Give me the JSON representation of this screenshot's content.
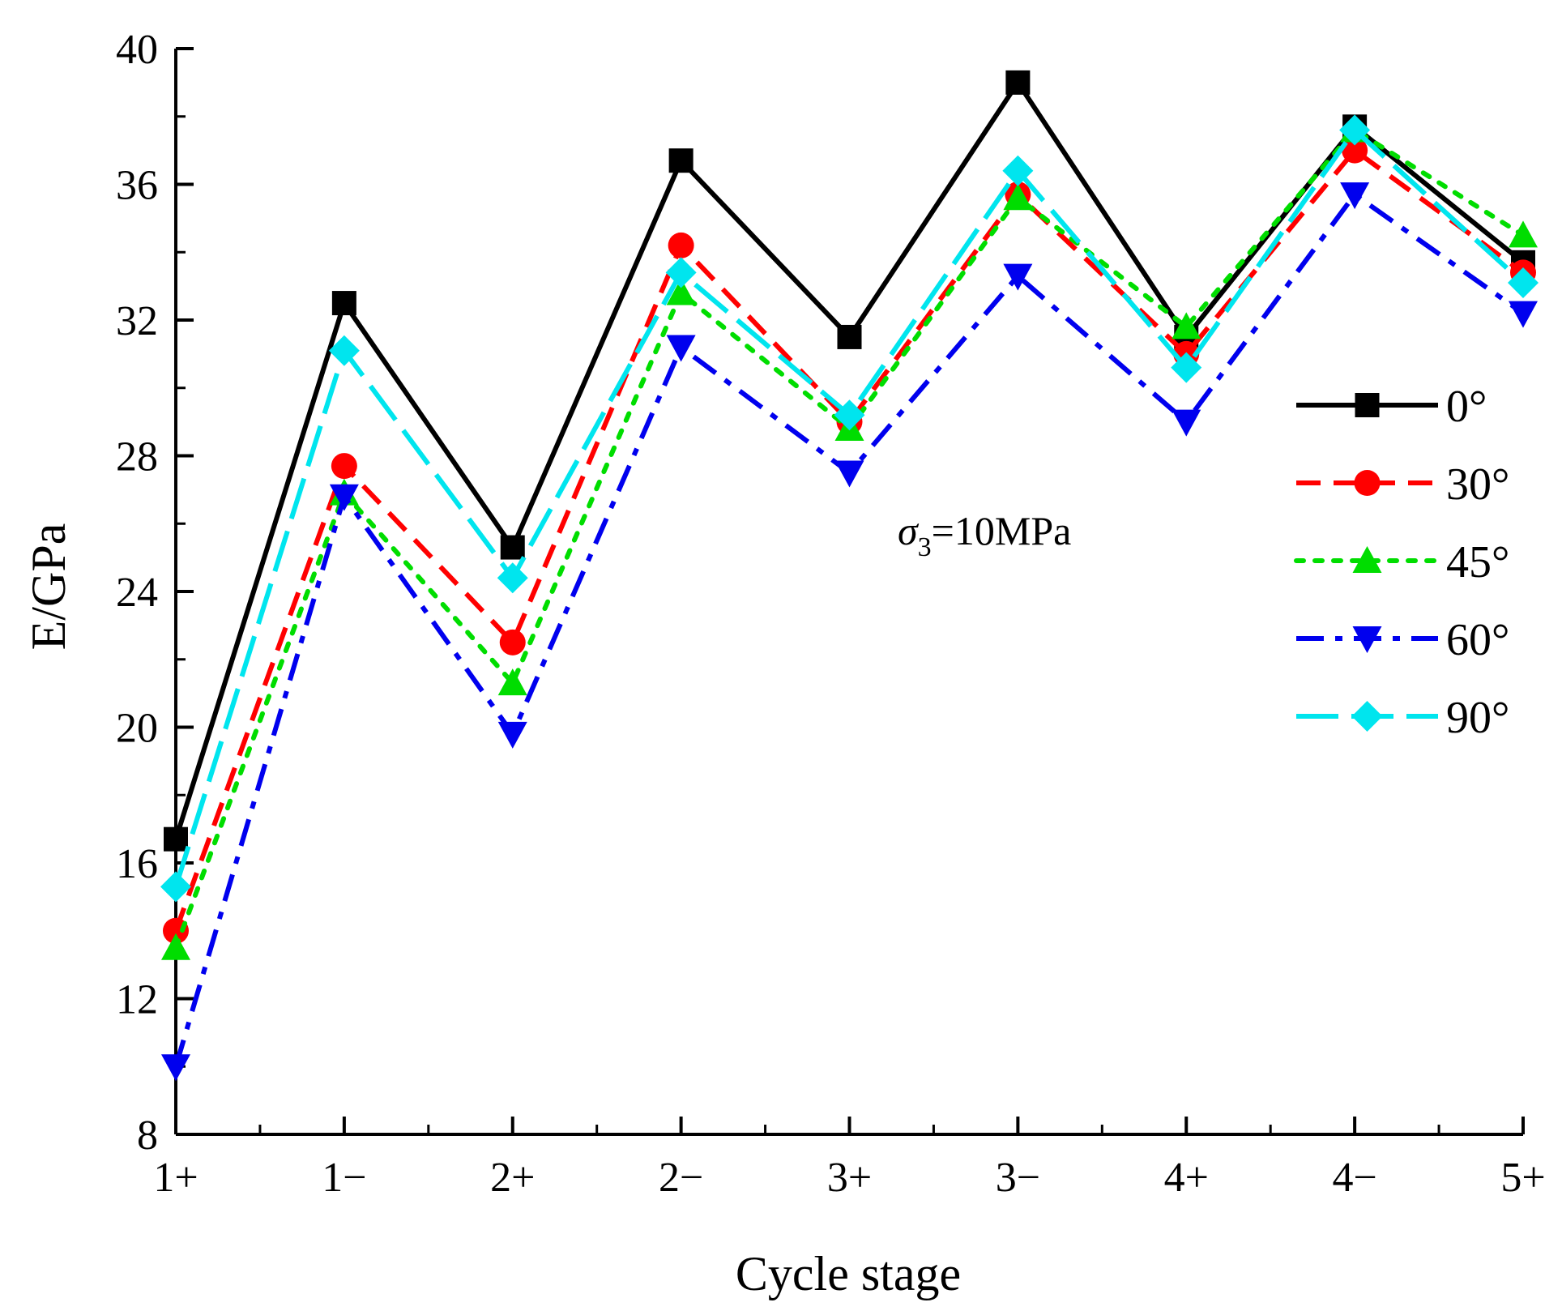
{
  "chart_data": {
    "type": "line",
    "title": "",
    "xlabel": "Cycle stage",
    "ylabel": "E/GPa",
    "categories": [
      "1+",
      "1−",
      "2+",
      "2−",
      "3+",
      "3−",
      "4+",
      "4−",
      "5+"
    ],
    "ylim": [
      8,
      40
    ],
    "yticks": [
      8,
      12,
      16,
      20,
      24,
      28,
      32,
      36,
      40
    ],
    "grid": false,
    "legend_position": "right",
    "annotation": {
      "symbol": "σ",
      "subscript": "3",
      "text": "=10MPa"
    },
    "series": [
      {
        "name": "0°",
        "color": "#000000",
        "marker": "square",
        "dash": "solid",
        "values": [
          16.7,
          32.5,
          25.3,
          36.7,
          31.5,
          39.0,
          31.5,
          37.7,
          33.7
        ]
      },
      {
        "name": "30°",
        "color": "#ff0000",
        "marker": "circle",
        "dash": "dash",
        "values": [
          14.0,
          27.7,
          22.5,
          34.2,
          29.0,
          35.7,
          31.0,
          37.0,
          33.4
        ]
      },
      {
        "name": "45°",
        "color": "#00dd00",
        "marker": "triangle-up",
        "dash": "dot",
        "values": [
          13.5,
          26.9,
          21.3,
          32.8,
          28.8,
          35.6,
          31.8,
          37.6,
          34.5
        ]
      },
      {
        "name": "60°",
        "color": "#0000ee",
        "marker": "triangle-down",
        "dash": "dashdot",
        "values": [
          10.0,
          26.8,
          19.8,
          31.2,
          27.5,
          33.3,
          29.0,
          35.7,
          32.2
        ]
      },
      {
        "name": "90°",
        "color": "#00e5ee",
        "marker": "diamond",
        "dash": "longdash",
        "values": [
          15.3,
          31.1,
          24.4,
          33.4,
          29.2,
          36.4,
          30.6,
          37.6,
          33.1
        ]
      }
    ]
  }
}
